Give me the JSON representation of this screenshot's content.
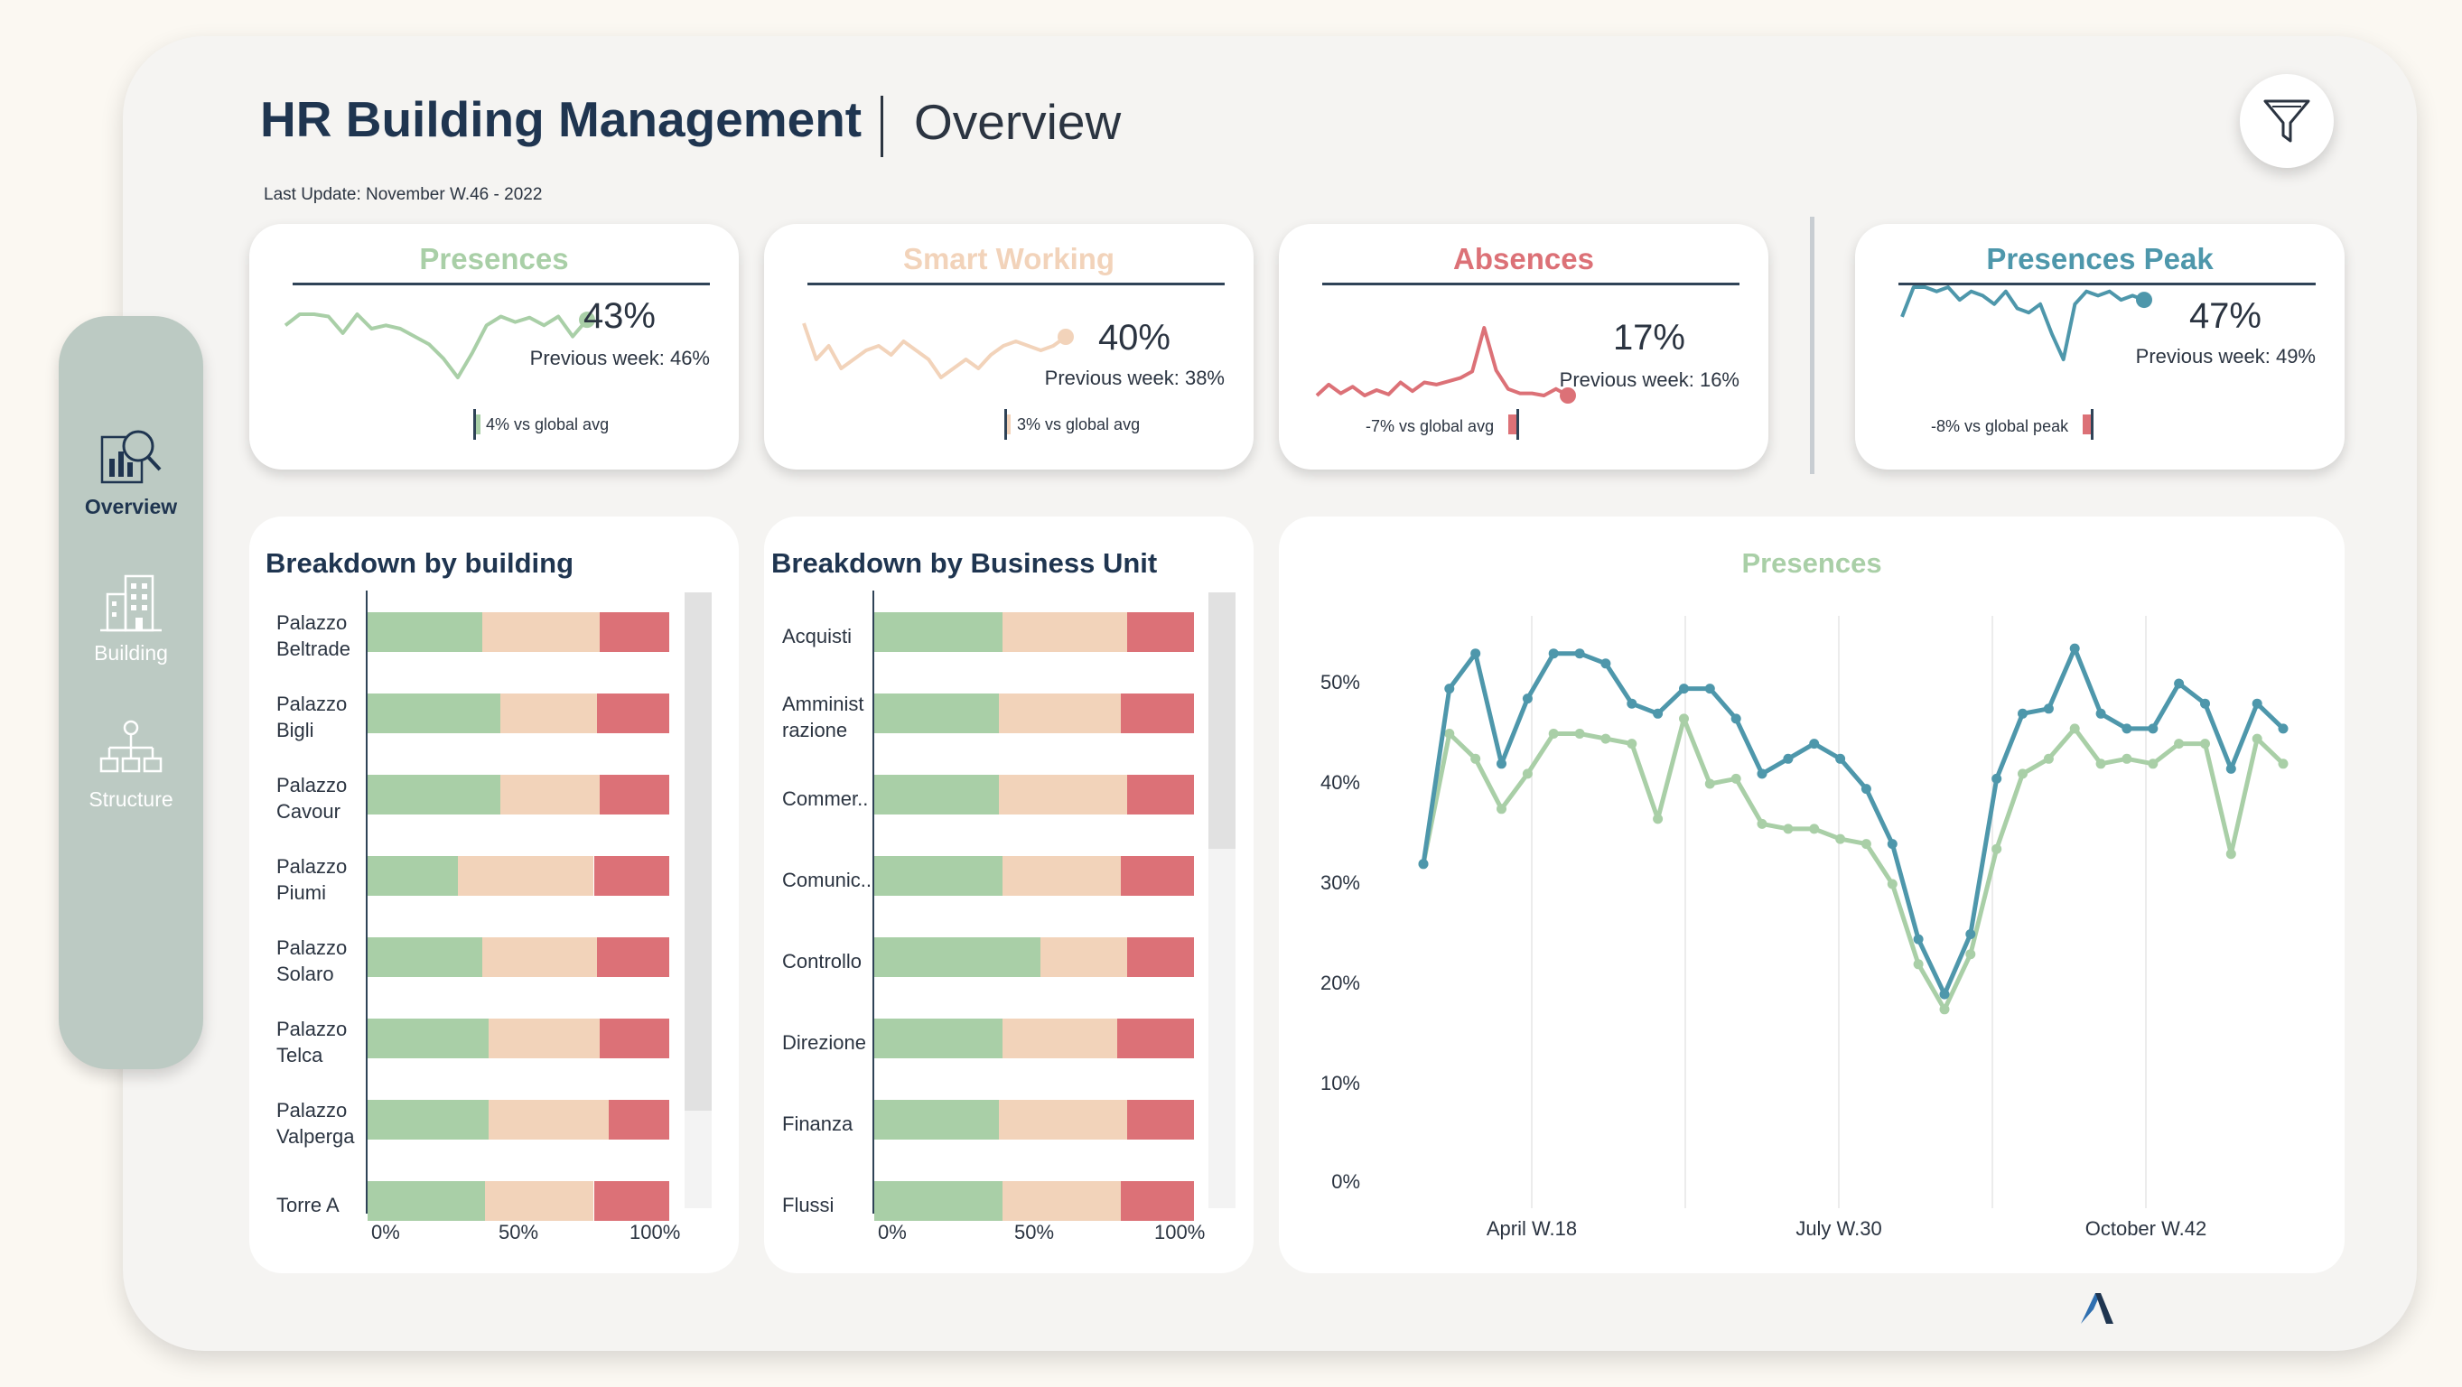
{
  "header": {
    "title": "HR Building Management",
    "subtitle": "Overview",
    "last_update": "Last Update: November W.46 - 2022",
    "filter_icon": "funnel-icon"
  },
  "sidebar": {
    "items": [
      {
        "label": "Overview",
        "icon": "dashboard-search-icon",
        "active": true
      },
      {
        "label": "Building",
        "icon": "building-icon",
        "active": false
      },
      {
        "label": "Structure",
        "icon": "org-chart-icon",
        "active": false
      }
    ]
  },
  "colors": {
    "green": "#a9cfa7",
    "peach": "#f2d3ba",
    "red": "#dc7177",
    "teal": "#4e97ab",
    "navy": "#1f3550"
  },
  "kpis": [
    {
      "title": "Presences",
      "value": "43%",
      "previous": "Previous week: 46%",
      "comparison": "4% vs global avg",
      "color": "#a9cfa7"
    },
    {
      "title": "Smart Working",
      "value": "40%",
      "previous": "Previous week: 38%",
      "comparison": "3% vs global avg",
      "color": "#f0c9a8"
    },
    {
      "title": "Absences",
      "value": "17%",
      "previous": "Previous week: 16%",
      "comparison": "-7% vs global avg",
      "color": "#dc7177"
    },
    {
      "title": "Presences Peak",
      "value": "47%",
      "previous": "Previous week: 49%",
      "comparison": "-8% vs global peak",
      "color": "#4e97ab"
    }
  ],
  "building_breakdown": {
    "title": "Breakdown by building",
    "axis": [
      "0%",
      "50%",
      "100%"
    ],
    "rows": [
      {
        "label": "Palazzo\nBeltrade",
        "presences": 0.38,
        "smart_working": 0.39,
        "absences": 0.23
      },
      {
        "label": "Palazzo\nBigli",
        "presences": 0.44,
        "smart_working": 0.32,
        "absences": 0.24
      },
      {
        "label": "Palazzo\nCavour",
        "presences": 0.44,
        "smart_working": 0.33,
        "absences": 0.23
      },
      {
        "label": "Palazzo\nPiumi",
        "presences": 0.3,
        "smart_working": 0.45,
        "absences": 0.25
      },
      {
        "label": "Palazzo\nSolaro",
        "presences": 0.38,
        "smart_working": 0.38,
        "absences": 0.24
      },
      {
        "label": "Palazzo\nTelca",
        "presences": 0.4,
        "smart_working": 0.37,
        "absences": 0.23
      },
      {
        "label": "Palazzo\nValperga",
        "presences": 0.4,
        "smart_working": 0.4,
        "absences": 0.2
      },
      {
        "label": "Torre A",
        "presences": 0.39,
        "smart_working": 0.36,
        "absences": 0.25
      }
    ]
  },
  "bu_breakdown": {
    "title": "Breakdown by Business Unit",
    "axis": [
      "0%",
      "50%",
      "100%"
    ],
    "rows": [
      {
        "label": "Acquisti",
        "presences": 0.4,
        "smart_working": 0.39,
        "absences": 0.21
      },
      {
        "label": "Amminist\nrazione",
        "presences": 0.39,
        "smart_working": 0.38,
        "absences": 0.23
      },
      {
        "label": "Commer..",
        "presences": 0.39,
        "smart_working": 0.4,
        "absences": 0.21
      },
      {
        "label": "Comunic..",
        "presences": 0.4,
        "smart_working": 0.37,
        "absences": 0.23
      },
      {
        "label": "Controllo",
        "presences": 0.52,
        "smart_working": 0.27,
        "absences": 0.21
      },
      {
        "label": "Direzione",
        "presences": 0.4,
        "smart_working": 0.36,
        "absences": 0.24
      },
      {
        "label": "Finanza",
        "presences": 0.39,
        "smart_working": 0.4,
        "absences": 0.21
      },
      {
        "label": "Flussi",
        "presences": 0.4,
        "smart_working": 0.37,
        "absences": 0.23
      }
    ]
  },
  "chart_data": {
    "type": "line",
    "title": "Presences",
    "ylim": [
      0,
      55
    ],
    "yticks": [
      "0%",
      "10%",
      "20%",
      "30%",
      "40%",
      "50%"
    ],
    "xlabels": [
      "April W.18",
      "July W.30",
      "October W.42"
    ],
    "grid": true,
    "series": [
      {
        "color": "#4e97ab",
        "values": [
          32,
          49.5,
          53,
          42,
          48.5,
          53,
          53,
          52,
          48,
          47,
          49.5,
          49.5,
          46.5,
          41,
          42.5,
          44,
          42.5,
          39.5,
          34,
          24.5,
          19,
          25,
          40.5,
          47,
          47.5,
          53.5,
          47,
          45.5,
          45.5,
          50,
          48,
          41.5,
          48,
          45.5
        ]
      },
      {
        "color": "#a9cfa7",
        "values": [
          32,
          45,
          42.5,
          37.5,
          41,
          45,
          45,
          44.5,
          44,
          36.5,
          46.5,
          40,
          40.5,
          36,
          35.5,
          35.5,
          34.5,
          34,
          30,
          22,
          17.5,
          23,
          33.5,
          41,
          42.5,
          45.5,
          42,
          42.5,
          42,
          44,
          44,
          33,
          44.5,
          42
        ]
      }
    ]
  },
  "sparklines": [
    [
      45.5,
      46.5,
      46.5,
      46.3,
      44.8,
      46.5,
      45.2,
      45.5,
      45.2,
      44.5,
      43.8,
      42.5,
      40.8,
      43.0,
      45.5,
      46.3,
      45.8,
      46.2,
      45.5,
      46.3,
      44.5,
      46.0
    ],
    [
      41.0,
      40.2,
      40.5,
      40.0,
      40.2,
      40.4,
      40.5,
      40.3,
      40.6,
      40.4,
      40.2,
      39.8,
      40.0,
      40.2,
      40.0,
      40.3,
      40.5,
      40.6,
      40.5,
      40.4,
      40.5,
      40.7
    ],
    [
      17.0,
      18.0,
      17.2,
      17.8,
      17.0,
      17.5,
      17.1,
      18.2,
      17.4,
      18.2,
      18.0,
      18.3,
      18.6,
      19.2,
      23.2,
      19.3,
      17.6,
      17.2,
      17.2,
      17.0,
      17.6,
      17.0
    ],
    [
      48.0,
      51.5,
      51.5,
      51.0,
      51.5,
      50.0,
      51.0,
      50.5,
      49.5,
      51.0,
      49.0,
      48.5,
      49.5,
      46.0,
      43.0,
      49.5,
      51.0,
      50.5,
      51.0,
      50.0,
      50.5,
      50.0
    ]
  ]
}
